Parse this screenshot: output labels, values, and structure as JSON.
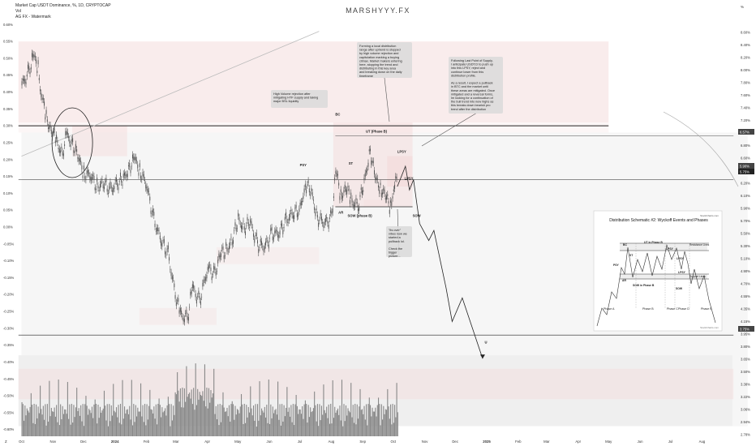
{
  "header": {
    "title": "Market Cap USDT Dominance, %, 1D, CRYPTOCAP",
    "vol": "Vol",
    "watermark_label": "AG FX - Watermark",
    "watermark": "MARSHYYY.FX"
  },
  "colors": {
    "candle": "#555555",
    "accent_up": "#089981",
    "accent_down": "#f23645",
    "zone_fill": "#f4dcdc",
    "level_line": "#222222"
  },
  "left_axis": {
    "ticks": [
      "0.60%",
      "0.55%",
      "0.50%",
      "0.45%",
      "0.40%",
      "0.35%",
      "0.30%",
      "0.25%",
      "0.20%",
      "0.15%",
      "0.10%",
      "0.05%",
      "0.00%",
      "-0.05%",
      "-0.10%",
      "-0.15%",
      "-0.20%",
      "-0.25%",
      "-0.30%",
      "-0.35%",
      "-0.40%",
      "-0.45%",
      "-0.50%",
      "-0.55%",
      "-0.60%"
    ]
  },
  "right_axis": {
    "unit": "%",
    "ticks": [
      "8.60%",
      "8.40%",
      "8.20%",
      "8.00%",
      "7.80%",
      "7.60%",
      "7.40%",
      "7.20%",
      "7.00%",
      "6.80%",
      "6.60%",
      "6.40%",
      "6.20%",
      "6.10%",
      "5.90%",
      "5.70%",
      "5.50%",
      "5.30%",
      "5.10%",
      "4.90%",
      "4.70%",
      "4.55%",
      "4.35%",
      "4.15%",
      "3.95%",
      "3.80%",
      "3.65%",
      "3.50%",
      "3.38%",
      "3.22%",
      "3.06%",
      "2.94%",
      "2.78%"
    ],
    "badges": [
      "6.57%",
      "5.90%",
      "5.75%",
      "3.75%"
    ]
  },
  "x_axis": {
    "ticks": [
      "Oct",
      "Nov",
      "Dec",
      "2024",
      "Feb",
      "Mar",
      "Apr",
      "May",
      "Jun",
      "Jul",
      "Aug",
      "Sep",
      "Oct",
      "Nov",
      "Dec",
      "2025",
      "Feb",
      "Mar",
      "Apr",
      "May",
      "Jun",
      "Jul",
      "Aug"
    ],
    "corner": "Z"
  },
  "annotations": {
    "high_volume": "High Volume rejection after mitigating HTF supply and taking major BSL liquidity",
    "distribution": "Forming a local distribution range after uptrend is stopped by high volume rejection and capitulation marking a buying climax. Market makers entering here, stopping the trend and distributing in this key area and breaking down on the daily timeframe",
    "lpsy": "Following Last Point of Supply, I anticipate USDT.D to push up into this LPSY, reject and continue lower from this distribution profile.\n\nAs a result, I expect a pullback in BTC and the market until these areas are mitigated. Once mitigated and a reversal forms, Im looking for a continuation of the bull trend into new highs as this breaks down bearish pro trend after the distribution",
    "its_over": "\"Its over\" vibes now we started a pullback lol.\n\nCheck the bigger picture..."
  },
  "wyckoff_labels": {
    "bc": "BC",
    "ut": "UT (Phase B)",
    "lpsy1": "LPSY",
    "lpsy2": "LPSY",
    "psy": "PSY",
    "st": "ST",
    "ar": "AR",
    "sow": "SOW (phase B)",
    "sow2": "SOW",
    "arrow": "U"
  },
  "schematic": {
    "title": "Distribution Schematic #2: Wyckoff Events and Phases",
    "site": "StockCharts.com",
    "labels": {
      "bc": "BC",
      "utad": "UT in Phase B",
      "lpsy_a": "LPSY",
      "lpsy_b": "LPSY",
      "lpsy_c": "LPSY",
      "psy": "PSY",
      "ar": "AR",
      "st": "ST",
      "sow_b": "SOW in Phase B",
      "sow": "SOW",
      "resistance": "Resistance Lines",
      "support": "Support Lines"
    },
    "phases": [
      "Phase A",
      "Phase B",
      "Phase C",
      "Phase D",
      "Phase E"
    ],
    "source": "StockCharts.com"
  },
  "chart_data": {
    "type": "candlestick",
    "title": "Market Cap USDT Dominance, %, 1D, CRYPTOCAP",
    "xlabel": "",
    "ylabel": "",
    "ylim_left": [
      -0.62,
      0.62
    ],
    "ylim_right": [
      2.78,
      8.6
    ],
    "x_range": [
      "2023-09-25",
      "2025-08-31"
    ],
    "grid": false,
    "series": [
      {
        "name": "",
        "points": [
          [
            "2023-10-01",
            0.42
          ],
          [
            "2023-10-08",
            0.46
          ],
          [
            "2023-10-12",
            0.51
          ],
          [
            "2023-10-17",
            0.47
          ],
          [
            "2023-10-20",
            0.4
          ],
          [
            "2023-10-25",
            0.32
          ],
          [
            "2023-10-30",
            0.29
          ],
          [
            "2023-11-04",
            0.25
          ],
          [
            "2023-11-10",
            0.22
          ],
          [
            "2023-11-14",
            0.27
          ],
          [
            "2023-11-20",
            0.25
          ],
          [
            "2023-11-26",
            0.2
          ],
          [
            "2023-12-01",
            0.16
          ],
          [
            "2023-12-08",
            0.15
          ],
          [
            "2023-12-14",
            0.12
          ],
          [
            "2023-12-20",
            0.13
          ],
          [
            "2023-12-27",
            0.11
          ],
          [
            "2024-01-03",
            0.13
          ],
          [
            "2024-01-09",
            0.14
          ],
          [
            "2024-01-15",
            0.18
          ],
          [
            "2024-01-20",
            0.2
          ],
          [
            "2024-01-25",
            0.17
          ],
          [
            "2024-02-01",
            0.12
          ],
          [
            "2024-02-08",
            0.02
          ],
          [
            "2024-02-15",
            -0.04
          ],
          [
            "2024-02-22",
            -0.08
          ],
          [
            "2024-02-29",
            -0.2
          ],
          [
            "2024-03-05",
            -0.26
          ],
          [
            "2024-03-12",
            -0.27
          ],
          [
            "2024-03-17",
            -0.18
          ],
          [
            "2024-03-24",
            -0.22
          ],
          [
            "2024-04-01",
            -0.12
          ],
          [
            "2024-04-08",
            -0.14
          ],
          [
            "2024-04-13",
            -0.08
          ],
          [
            "2024-04-19",
            -0.07
          ],
          [
            "2024-04-25",
            -0.04
          ],
          [
            "2024-05-01",
            0.02
          ],
          [
            "2024-05-07",
            0.0
          ],
          [
            "2024-05-13",
            0.01
          ],
          [
            "2024-05-20",
            -0.05
          ],
          [
            "2024-05-27",
            -0.06
          ],
          [
            "2024-06-03",
            -0.02
          ],
          [
            "2024-06-10",
            -0.02
          ],
          [
            "2024-06-17",
            0.02
          ],
          [
            "2024-06-24",
            0.04
          ],
          [
            "2024-07-01",
            0.05
          ],
          [
            "2024-07-06",
            0.13
          ],
          [
            "2024-07-12",
            0.1
          ],
          [
            "2024-07-18",
            0.03
          ],
          [
            "2024-07-25",
            0.01
          ],
          [
            "2024-08-01",
            0.03
          ],
          [
            "2024-08-05",
            0.17
          ],
          [
            "2024-08-10",
            0.09
          ],
          [
            "2024-08-15",
            0.12
          ],
          [
            "2024-08-20",
            0.08
          ],
          [
            "2024-08-27",
            0.06
          ],
          [
            "2024-09-02",
            0.13
          ],
          [
            "2024-09-08",
            0.23
          ],
          [
            "2024-09-13",
            0.14
          ],
          [
            "2024-09-18",
            0.12
          ],
          [
            "2024-09-23",
            0.09
          ],
          [
            "2024-09-28",
            0.06
          ],
          [
            "2024-10-01",
            0.12
          ],
          [
            "2024-10-05",
            0.14
          ]
        ]
      }
    ],
    "projection": [
      [
        "2024-10-05",
        0.12
      ],
      [
        "2024-10-13",
        0.18
      ],
      [
        "2024-10-17",
        0.11
      ],
      [
        "2024-10-21",
        0.14
      ],
      [
        "2024-10-27",
        0.01
      ],
      [
        "2024-11-05",
        -0.04
      ],
      [
        "2024-11-10",
        -0.01
      ],
      [
        "2024-11-22",
        -0.18
      ],
      [
        "2024-11-28",
        -0.28
      ],
      [
        "2024-12-08",
        -0.21
      ],
      [
        "2024-12-28",
        -0.39
      ]
    ],
    "volume_note": "daily volume bars, Oct 2023 – Oct 2024"
  }
}
